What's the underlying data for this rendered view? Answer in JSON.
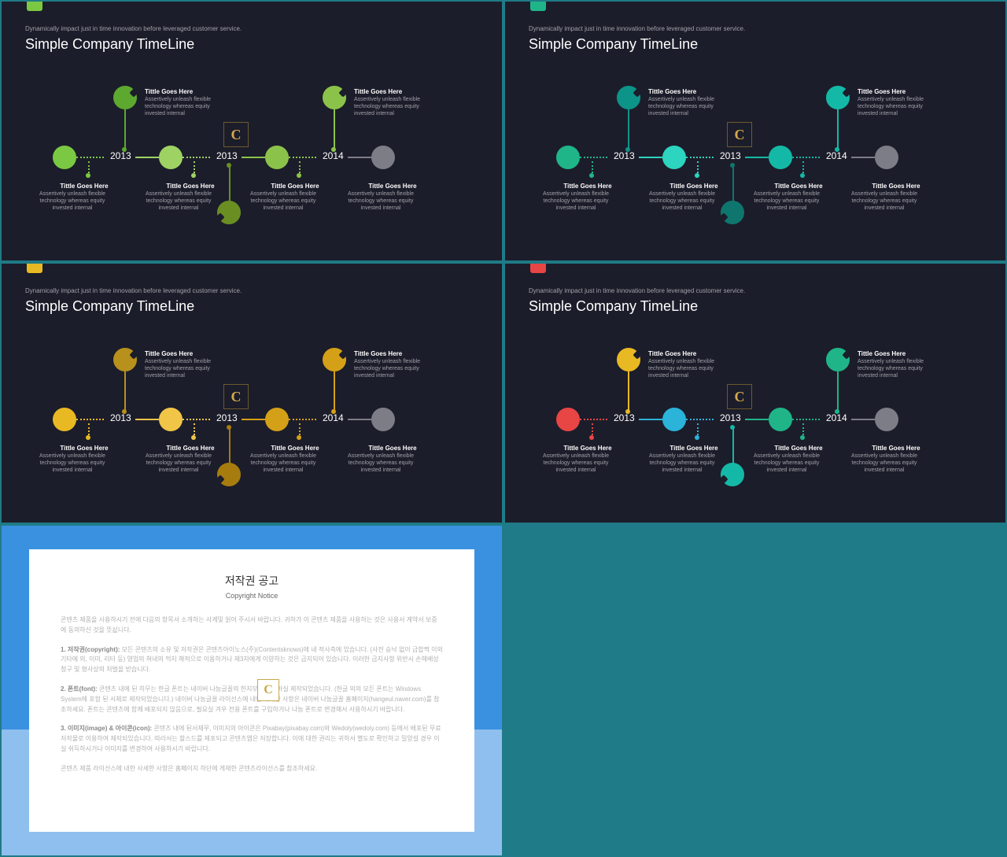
{
  "common": {
    "subtitle": "Dynamically impact just in time innovation before leveraged customer service.",
    "title": "Simple Company TimeLine",
    "item_title": "Tittle Goes Here",
    "item_desc": "Assertively unleash flexible technology whereas equity invested internal",
    "years": [
      "2013",
      "2013",
      "2014"
    ]
  },
  "slides": [
    {
      "tab_color": "#7bc943",
      "palette": {
        "p1": "#7bc943",
        "p2": "#5da82f",
        "p3": "#9ed364",
        "p4": "#8bc34a",
        "p5": "#6b8e23",
        "gray": "#7d7d87"
      }
    },
    {
      "tab_color": "#1fb588",
      "palette": {
        "p1": "#1fb588",
        "p2": "#0d9488",
        "p3": "#2dd4bf",
        "p4": "#14b8a6",
        "p5": "#0f766e",
        "gray": "#7d7d87"
      }
    },
    {
      "tab_color": "#e8b923",
      "palette": {
        "p1": "#e8b923",
        "p2": "#b8901c",
        "p3": "#f0c548",
        "p4": "#d4a017",
        "p5": "#a67c0e",
        "gray": "#7d7d87"
      }
    },
    {
      "tab_color": "#e84545",
      "palette": {
        "p1": "#e84545",
        "p2": "#e8b923",
        "p3": "#2bb3d9",
        "p4": "#1fb588",
        "p5": "#14b8a6",
        "gray": "#7d7d87"
      }
    }
  ],
  "copyright": {
    "title": "저작권 공고",
    "subtitle": "Copyright Notice",
    "intro": "콘텐츠 제품을 사용하시기 전에 다음의 항목서 소개하는 사계및 읽어 주시서 바랍니다. 귀하가 이 콘텐츠 제품을 사용하는 것은 사용서 계약서 보증에 동의하신 것을 뜻싮니다.",
    "p1_label": "1. 저작권(copyright):",
    "p1_text": "모든 콘텐츠의 소유 및 저작권은 콘텐츠아이노스(주)(Contentsknows)에 네 적사측에 있습니다. (사전 승낙 없이 금합쩍 이외 기타에 의, 이미, 리터 등) 영업의 혀네의 먹지 해적으로 이용하거나 제3자에게 이양하는 것은 금지되어 있습니다. 이러한 금지사항 위반시 손해배상 청구 및 형사상의 처벌을 받습니다.",
    "p2_label": "2. 폰트(font):",
    "p2_text": "콘텐츠 내에 된 히무는 한글 폰트는 네이버 나눔글꼴의 한지부워 궷시아실 제작되었습니다. (한글 외의 모든 폰트는 Windows System에 포함 된 서체로 제작되었습니다.) 네이버 나눔글꼴 라이선스에 내한 사세한 사항은 네이버 나눔글꼴 홈페이지(hangeul.naver.com)를 참조하세요. 폰트는 콘텐츠에 함께 배포되지 않음으로, 필요실 겨우 전용 폰트를 구입하거나 나눔 폰트로 변경해서 사용하시기 바랍니다.",
    "p3_label": "3. 이미지(image) & 아이콘(icon):",
    "p3_text": "콘텐츠 내에 된서제무, 이미지의 아이콘은 Pixabay(pixabay.com)와 Wedoly(wedoly.com) 등에서 배포된 무료 저작물로 이용하여 제작되있습니다. 따라서는 할스드를 제포되고 콘텐츠앱은 저장합니다. 이에 대한 권리는 귀하서 별도로 확인하고 밀양설 경우 이실 쉬득하시거나 이미지를 변경하여 사용하시기 바랍니다.",
    "outro": "콘텐츠 제품 라이선스에 내한 사세한 사항은 홈페이지 하단에 게재한 콘텐츠라이선스를 참조하세요."
  }
}
